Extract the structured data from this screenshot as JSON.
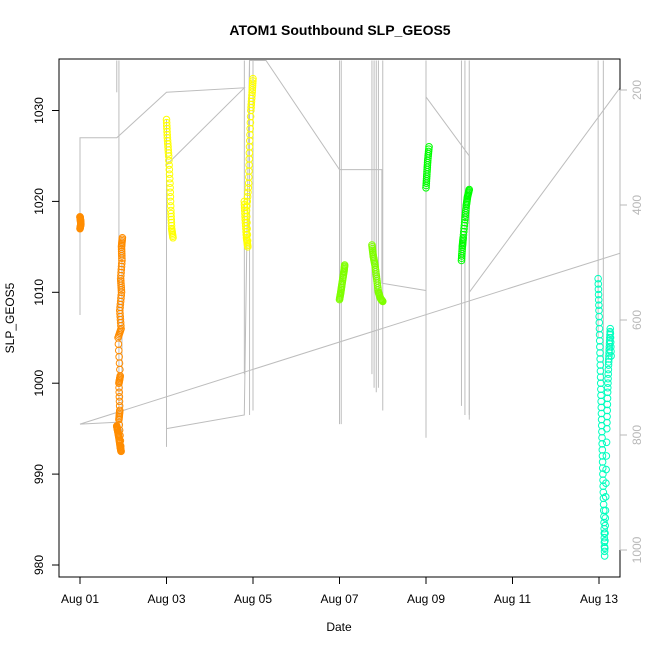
{
  "chart_data": {
    "type": "scatter",
    "title": "ATOM1 Southbound SLP_GEOS5",
    "xlabel": "Date",
    "ylabel": "SLP_GEOS5",
    "x_range_days": [
      -0.5,
      12.5
    ],
    "ylim": [
      979,
      1035.5
    ],
    "x_ticks": [
      {
        "day": 0,
        "label": "Aug 01"
      },
      {
        "day": 2,
        "label": "Aug 03"
      },
      {
        "day": 4,
        "label": "Aug 05"
      },
      {
        "day": 6,
        "label": "Aug 07"
      },
      {
        "day": 8,
        "label": "Aug 09"
      },
      {
        "day": 10,
        "label": "Aug 11"
      },
      {
        "day": 12,
        "label": "Aug 13"
      }
    ],
    "y_ticks": [
      980,
      990,
      1000,
      1010,
      1020,
      1030
    ],
    "secondary_axis": {
      "color": "#b8b8b8",
      "range": [
        1060,
        150
      ],
      "ticks": [
        200,
        400,
        600,
        800,
        1000
      ]
    },
    "segments": [
      {
        "color": "#ff8c00",
        "points": [
          [
            0.0,
            1018.3
          ],
          [
            0.01,
            1018.0
          ],
          [
            0.02,
            1017.5
          ],
          [
            0.0,
            1017.0
          ]
        ]
      },
      {
        "color": "#ff8c00",
        "points": [
          [
            0.85,
            995.3
          ],
          [
            0.87,
            994.8
          ],
          [
            0.9,
            994.0
          ],
          [
            0.93,
            993.0
          ],
          [
            0.95,
            992.5
          ],
          [
            0.9,
            996.0
          ],
          [
            0.92,
            997.0
          ],
          [
            0.9,
            1000.0
          ],
          [
            0.93,
            1000.8
          ],
          [
            0.88,
            1005.0
          ],
          [
            0.95,
            1006.0
          ],
          [
            0.92,
            1008.0
          ],
          [
            0.96,
            1010.0
          ],
          [
            0.94,
            1011.5
          ],
          [
            0.97,
            1013.5
          ],
          [
            0.96,
            1015.0
          ],
          [
            0.98,
            1016.0
          ]
        ]
      },
      {
        "color": "#ffff00",
        "points": [
          [
            2.0,
            1029.0
          ],
          [
            2.02,
            1027.0
          ],
          [
            2.05,
            1025.0
          ],
          [
            2.08,
            1022.0
          ],
          [
            2.1,
            1019.0
          ],
          [
            2.12,
            1017.0
          ],
          [
            2.15,
            1016.0
          ]
        ]
      },
      {
        "color": "#ffff00",
        "points": [
          [
            3.8,
            1020.0
          ],
          [
            3.82,
            1018.0
          ],
          [
            3.85,
            1016.0
          ],
          [
            3.88,
            1015.0
          ],
          [
            3.85,
            1019.0
          ],
          [
            3.9,
            1022.0
          ],
          [
            3.92,
            1026.0
          ],
          [
            3.95,
            1030.0
          ],
          [
            3.98,
            1032.0
          ],
          [
            4.0,
            1033.5
          ]
        ]
      },
      {
        "color": "#7fff00",
        "points": [
          [
            6.0,
            1009.2
          ],
          [
            6.03,
            1010.0
          ],
          [
            6.06,
            1011.0
          ],
          [
            6.1,
            1012.2
          ],
          [
            6.12,
            1013.0
          ]
        ]
      },
      {
        "color": "#7fff00",
        "points": [
          [
            6.75,
            1015.2
          ],
          [
            6.78,
            1014.0
          ],
          [
            6.82,
            1013.0
          ],
          [
            6.86,
            1011.5
          ],
          [
            6.9,
            1010.0
          ],
          [
            6.95,
            1009.3
          ],
          [
            7.0,
            1009.0
          ]
        ]
      },
      {
        "color": "#00ff00",
        "points": [
          [
            8.0,
            1021.5
          ],
          [
            8.02,
            1023.0
          ],
          [
            8.04,
            1024.5
          ],
          [
            8.07,
            1026.0
          ]
        ]
      },
      {
        "color": "#00ff00",
        "points": [
          [
            8.82,
            1013.5
          ],
          [
            8.84,
            1015.0
          ],
          [
            8.86,
            1016.0
          ],
          [
            8.9,
            1018.0
          ],
          [
            8.93,
            1019.5
          ],
          [
            8.96,
            1020.5
          ],
          [
            9.0,
            1021.3
          ]
        ]
      },
      {
        "color": "#00ffbf",
        "points": [
          [
            11.98,
            1011.5
          ],
          [
            12.0,
            1008.0
          ],
          [
            12.02,
            1004.0
          ],
          [
            12.04,
            1000.0
          ],
          [
            12.06,
            996.0
          ],
          [
            12.08,
            992.0
          ],
          [
            12.1,
            988.0
          ],
          [
            12.12,
            984.0
          ],
          [
            12.13,
            981.0
          ],
          [
            12.15,
            986.0
          ],
          [
            12.18,
            995.0
          ],
          [
            12.2,
            999.0
          ],
          [
            12.22,
            1002.0
          ],
          [
            12.24,
            1004.0
          ],
          [
            12.26,
            1006.0
          ],
          [
            12.28,
            1003.0
          ]
        ]
      },
      {
        "color": "#00ffbf",
        "points": [
          [
            12.95,
            1016.5
          ],
          [
            12.97,
            1015.5
          ],
          [
            13.0,
            1014.0
          ],
          [
            13.02,
            1013.0
          ],
          [
            13.05,
            1012.5
          ]
        ]
      }
    ],
    "profile_lines_color": "#bdbdbd",
    "profiles": [
      {
        "x": 0.85,
        "y": [
          1035.5,
          1032.0
        ]
      },
      {
        "x": 0.9,
        "y": [
          1035.5,
          994.0
        ]
      },
      {
        "x": 0.97,
        "y": [
          1016.0,
          993.0
        ]
      },
      {
        "x": 2.0,
        "y": [
          1029.0,
          993.0
        ]
      },
      {
        "x": 3.8,
        "y": [
          1035.5,
          1001.0
        ]
      },
      {
        "x": 3.92,
        "y": [
          1035.5,
          996.5
        ]
      },
      {
        "x": 4.0,
        "y": [
          1035.5,
          997.0
        ]
      },
      {
        "x": 6.0,
        "y": [
          1035.5,
          995.5
        ]
      },
      {
        "x": 6.04,
        "y": [
          1035.5,
          995.5
        ]
      },
      {
        "x": 6.75,
        "y": [
          1035.5,
          1001.0
        ]
      },
      {
        "x": 6.8,
        "y": [
          1035.5,
          999.5
        ]
      },
      {
        "x": 6.85,
        "y": [
          1035.5,
          999.0
        ]
      },
      {
        "x": 6.9,
        "y": [
          1035.5,
          999.5
        ]
      },
      {
        "x": 7.0,
        "y": [
          1035.5,
          997.0
        ]
      },
      {
        "x": 8.0,
        "y": [
          1035.5,
          994.0
        ]
      },
      {
        "x": 8.82,
        "y": [
          1035.5,
          997.5
        ]
      },
      {
        "x": 8.9,
        "y": [
          1035.5,
          996.5
        ]
      },
      {
        "x": 9.0,
        "y": [
          1035.5,
          996.5
        ]
      },
      {
        "x": 11.98,
        "y": [
          1035.5,
          1005.0
        ]
      },
      {
        "x": 12.1,
        "y": [
          1035.5,
          1000.0
        ]
      },
      {
        "x": 12.95,
        "y": [
          1035.5,
          1000.5
        ]
      }
    ],
    "track_line": [
      [
        0.0,
        1007.5
      ],
      [
        0.0,
        1027.0
      ],
      [
        0.85,
        1027.0
      ],
      [
        2.0,
        1032.0
      ],
      [
        3.8,
        1032.5
      ],
      [
        2.0,
        1024.0
      ],
      [
        2.0,
        995.0
      ],
      [
        3.8,
        996.5
      ],
      [
        3.92,
        1035.5
      ],
      [
        4.3,
        1035.5
      ],
      [
        6.0,
        1023.5
      ],
      [
        6.98,
        1023.5
      ],
      [
        6.98,
        1011.0
      ],
      [
        8.0,
        1010.2
      ],
      [
        8.0,
        1031.5
      ],
      [
        9.0,
        1025.0
      ],
      [
        9.0,
        996.0
      ],
      [
        9.0,
        1010.0
      ],
      [
        12.95,
        1035.5
      ],
      [
        12.95,
        1015.0
      ],
      [
        0.0,
        995.5
      ],
      [
        0.85,
        995.7
      ]
    ]
  }
}
